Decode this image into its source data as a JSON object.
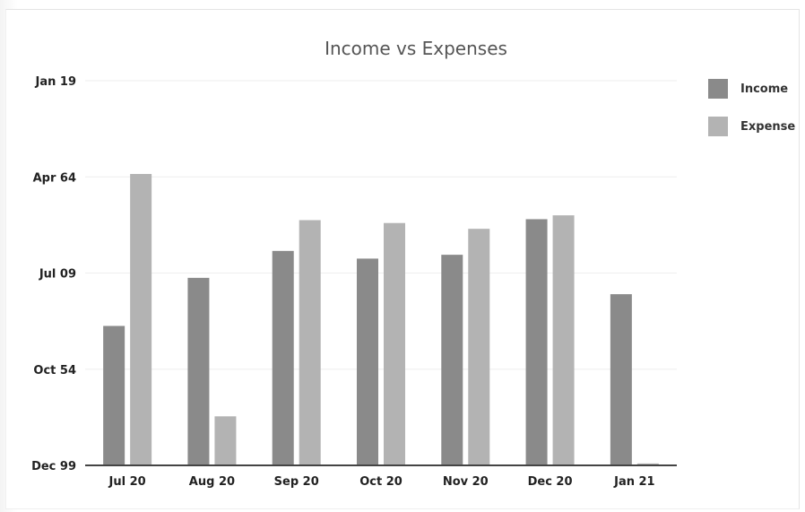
{
  "chart_data": {
    "type": "bar",
    "title": "Income vs Expenses",
    "categories": [
      "Jul 20",
      "Aug 20",
      "Sep 20",
      "Oct 20",
      "Nov 20",
      "Dec 20",
      "Jan 21"
    ],
    "y_tick_labels": [
      "Dec 99",
      "Oct 54",
      "Jul 09",
      "Apr 64",
      "Jan 19"
    ],
    "ylim": [
      0,
      4
    ],
    "series": [
      {
        "name": "Income",
        "color": "#8a8a8a",
        "values": [
          1.45,
          1.95,
          2.23,
          2.15,
          2.19,
          2.56,
          1.78
        ]
      },
      {
        "name": "Expense",
        "color": "#b3b3b3",
        "values": [
          3.03,
          0.51,
          2.55,
          2.52,
          2.46,
          2.6,
          0.02
        ]
      }
    ],
    "legend_position": "right",
    "grid": true
  }
}
